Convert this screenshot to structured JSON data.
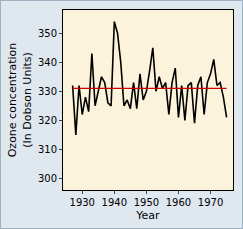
{
  "chart_data": {
    "type": "line",
    "x_label": "Year",
    "y_label": "Ozone concentration\n(In Dobson Units)",
    "x": [
      1927,
      1928,
      1929,
      1930,
      1931,
      1932,
      1933,
      1934,
      1935,
      1936,
      1937,
      1938,
      1939,
      1940,
      1941,
      1942,
      1943,
      1944,
      1945,
      1946,
      1947,
      1948,
      1949,
      1950,
      1951,
      1952,
      1953,
      1954,
      1955,
      1956,
      1957,
      1958,
      1959,
      1960,
      1961,
      1962,
      1963,
      1964,
      1965,
      1966,
      1967,
      1968,
      1969,
      1970,
      1971,
      1972,
      1973,
      1974,
      1975
    ],
    "series": [
      {
        "color": "#000000",
        "line_style": "solid",
        "values": [
          332,
          315,
          332,
          322,
          328,
          323,
          343,
          325,
          330,
          335,
          333,
          326,
          325,
          354,
          350,
          340,
          325,
          327,
          324,
          333,
          324,
          336,
          327,
          330,
          337,
          345,
          330,
          335,
          331,
          333,
          322,
          333,
          338,
          321,
          332,
          320,
          332,
          333,
          319,
          332,
          335,
          322,
          333,
          336,
          341,
          332,
          333,
          328,
          321
        ]
      },
      {
        "color": "#cc0000",
        "line_style": "solid",
        "values": [
          331,
          331,
          331,
          331,
          331,
          331,
          331,
          331,
          331,
          331,
          331,
          331,
          331,
          331,
          331,
          331,
          331,
          331,
          331,
          331,
          331,
          331,
          331,
          331,
          331,
          331,
          331,
          331,
          331,
          331,
          331,
          331,
          331,
          331,
          331,
          331,
          331,
          331,
          331,
          331,
          331,
          331,
          331,
          331,
          331,
          331,
          331,
          331,
          331
        ]
      }
    ],
    "xlim": [
      1924,
      1977
    ],
    "xticks": [
      1930,
      1940,
      1950,
      1960,
      1970
    ],
    "ylim": [
      296,
      358
    ],
    "yticks": [
      300,
      310,
      320,
      330,
      340,
      350
    ],
    "grid": false
  }
}
